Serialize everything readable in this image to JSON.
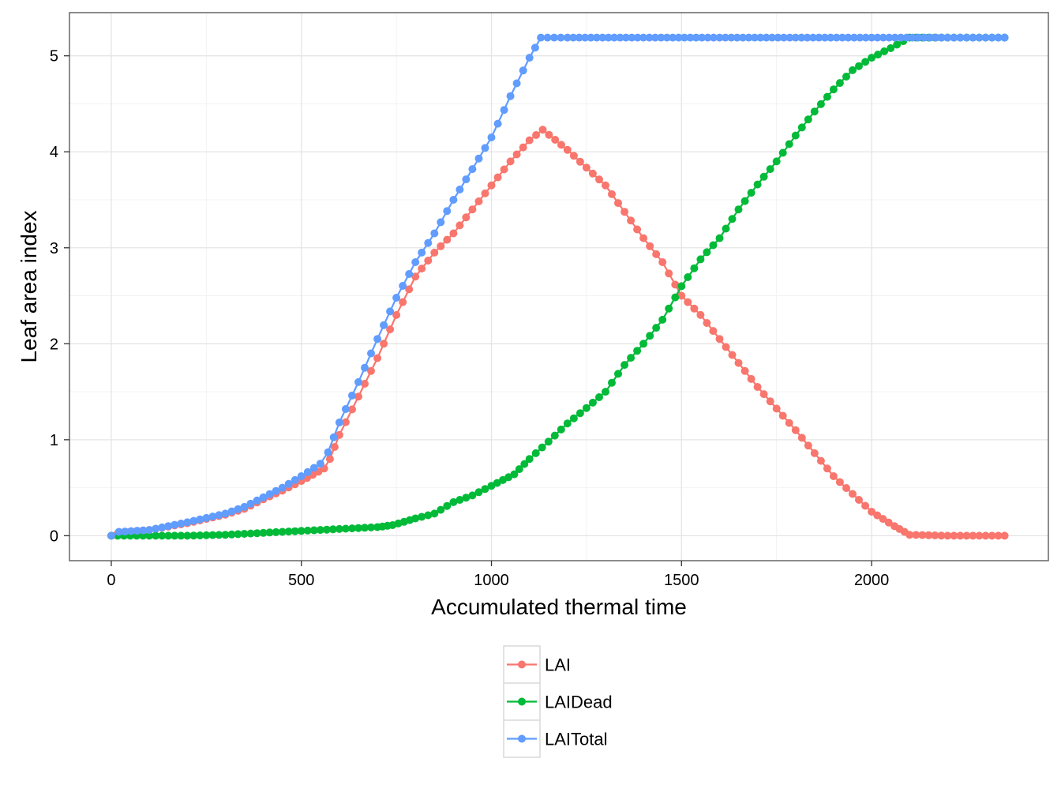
{
  "chart_data": {
    "type": "line",
    "title": "",
    "xlabel": "Accumulated thermal time",
    "ylabel": "Leaf area index",
    "xlim": [
      -110,
      2465
    ],
    "ylim": [
      -0.26,
      5.45
    ],
    "xticks": [
      0,
      500,
      1000,
      1500,
      2000
    ],
    "yticks": [
      0,
      1,
      2,
      3,
      4,
      5
    ],
    "grid": true,
    "legend_position": "bottom",
    "markers": "points",
    "series": [
      {
        "name": "LAI",
        "color": "#F8766D",
        "points": [
          [
            0,
            0
          ],
          [
            30,
            0.03
          ],
          [
            100,
            0.06
          ],
          [
            200,
            0.13
          ],
          [
            300,
            0.22
          ],
          [
            350,
            0.28
          ],
          [
            400,
            0.38
          ],
          [
            450,
            0.47
          ],
          [
            500,
            0.57
          ],
          [
            560,
            0.7
          ],
          [
            575,
            0.8
          ],
          [
            600,
            1.05
          ],
          [
            650,
            1.45
          ],
          [
            700,
            1.85
          ],
          [
            750,
            2.3
          ],
          [
            800,
            2.7
          ],
          [
            850,
            2.95
          ],
          [
            900,
            3.15
          ],
          [
            950,
            3.4
          ],
          [
            1000,
            3.65
          ],
          [
            1050,
            3.9
          ],
          [
            1100,
            4.12
          ],
          [
            1135,
            4.23
          ],
          [
            1200,
            4.02
          ],
          [
            1300,
            3.65
          ],
          [
            1400,
            3.1
          ],
          [
            1450,
            2.85
          ],
          [
            1500,
            2.5
          ],
          [
            1550,
            2.3
          ],
          [
            1600,
            2.05
          ],
          [
            1700,
            1.55
          ],
          [
            1800,
            1.1
          ],
          [
            1900,
            0.62
          ],
          [
            2000,
            0.25
          ],
          [
            2060,
            0.1
          ],
          [
            2100,
            0.01
          ],
          [
            2200,
            0
          ],
          [
            2350,
            0
          ]
        ]
      },
      {
        "name": "LAIDead",
        "color": "#00BA38",
        "points": [
          [
            0,
            0
          ],
          [
            100,
            0
          ],
          [
            200,
            0
          ],
          [
            300,
            0.01
          ],
          [
            400,
            0.03
          ],
          [
            500,
            0.05
          ],
          [
            600,
            0.07
          ],
          [
            700,
            0.09
          ],
          [
            740,
            0.11
          ],
          [
            800,
            0.18
          ],
          [
            850,
            0.23
          ],
          [
            900,
            0.35
          ],
          [
            950,
            0.42
          ],
          [
            1000,
            0.52
          ],
          [
            1060,
            0.64
          ],
          [
            1100,
            0.8
          ],
          [
            1150,
            0.98
          ],
          [
            1200,
            1.17
          ],
          [
            1250,
            1.33
          ],
          [
            1300,
            1.5
          ],
          [
            1350,
            1.78
          ],
          [
            1400,
            2.0
          ],
          [
            1450,
            2.25
          ],
          [
            1500,
            2.6
          ],
          [
            1550,
            2.88
          ],
          [
            1600,
            3.1
          ],
          [
            1650,
            3.4
          ],
          [
            1700,
            3.66
          ],
          [
            1750,
            3.9
          ],
          [
            1800,
            4.17
          ],
          [
            1850,
            4.42
          ],
          [
            1900,
            4.65
          ],
          [
            1950,
            4.85
          ],
          [
            2000,
            4.98
          ],
          [
            2050,
            5.08
          ],
          [
            2100,
            5.19
          ],
          [
            2200,
            5.19
          ],
          [
            2350,
            5.19
          ]
        ]
      },
      {
        "name": "LAITotal",
        "color": "#619CFF",
        "points": [
          [
            0,
            0
          ],
          [
            20,
            0.04
          ],
          [
            100,
            0.06
          ],
          [
            200,
            0.14
          ],
          [
            300,
            0.23
          ],
          [
            350,
            0.3
          ],
          [
            400,
            0.4
          ],
          [
            450,
            0.5
          ],
          [
            500,
            0.62
          ],
          [
            550,
            0.75
          ],
          [
            570,
            0.87
          ],
          [
            600,
            1.18
          ],
          [
            650,
            1.6
          ],
          [
            700,
            2.05
          ],
          [
            750,
            2.48
          ],
          [
            800,
            2.85
          ],
          [
            850,
            3.15
          ],
          [
            900,
            3.5
          ],
          [
            950,
            3.82
          ],
          [
            1000,
            4.15
          ],
          [
            1050,
            4.58
          ],
          [
            1100,
            4.98
          ],
          [
            1130,
            5.19
          ],
          [
            1200,
            5.19
          ],
          [
            1400,
            5.19
          ],
          [
            1600,
            5.19
          ],
          [
            1800,
            5.19
          ],
          [
            2000,
            5.19
          ],
          [
            2200,
            5.19
          ],
          [
            2350,
            5.19
          ]
        ]
      }
    ]
  }
}
